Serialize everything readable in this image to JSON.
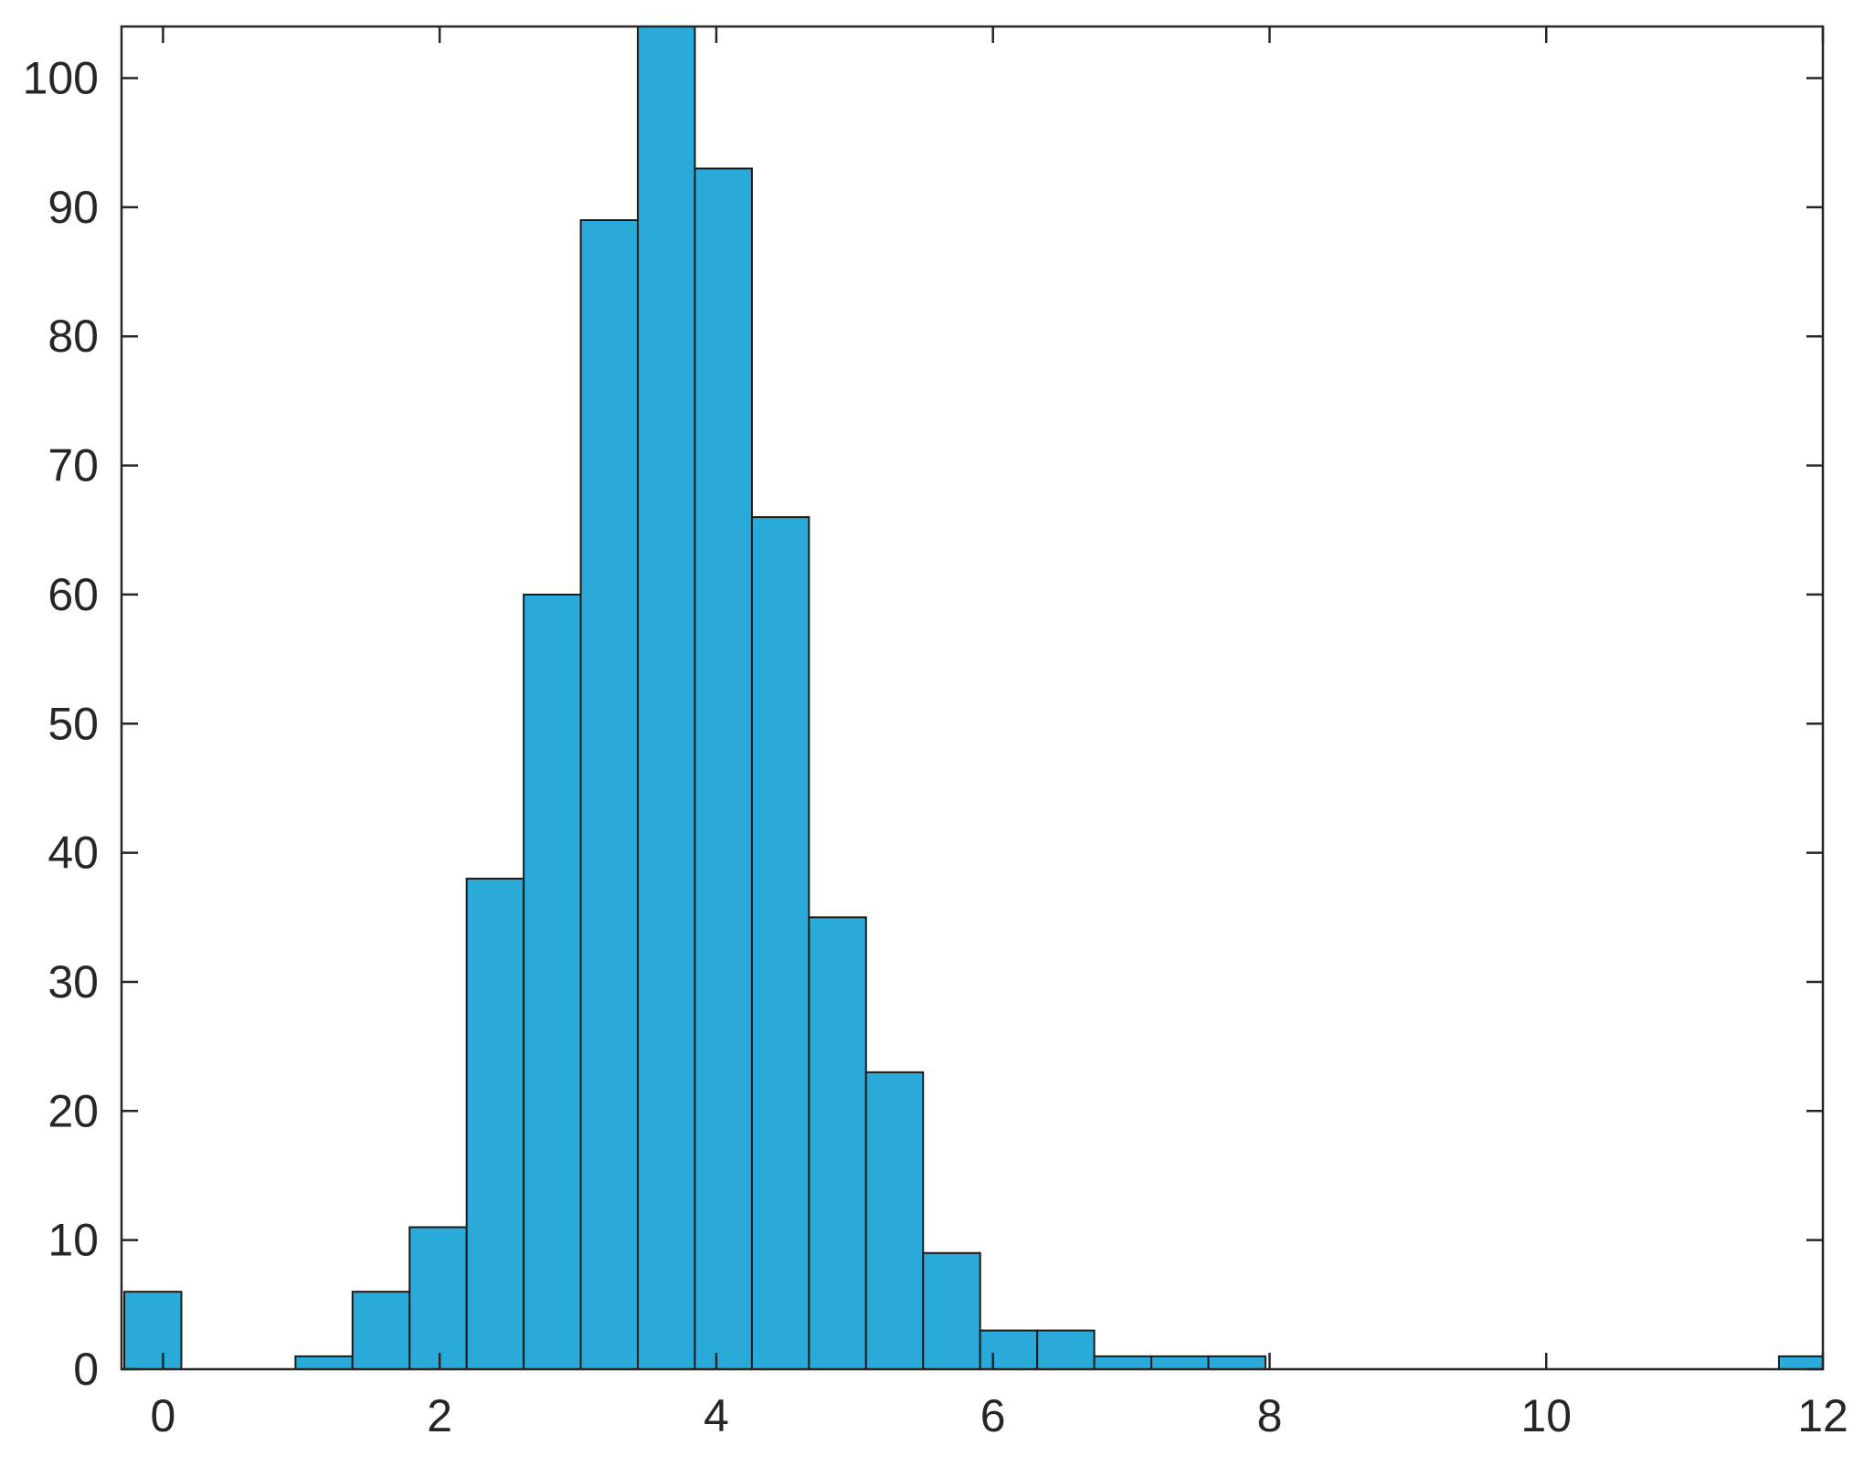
{
  "chart_data": {
    "type": "bar",
    "subtype": "histogram",
    "title": "",
    "xlabel": "",
    "ylabel": "",
    "xlim": [
      -0.3,
      12
    ],
    "ylim": [
      0,
      104
    ],
    "x_ticks": [
      0,
      2,
      4,
      6,
      8,
      10,
      12
    ],
    "y_ticks": [
      0,
      10,
      20,
      30,
      40,
      50,
      60,
      70,
      80,
      90,
      100
    ],
    "bin_edges_start": -0.28,
    "bin_width": 0.4125,
    "bins": [
      {
        "start": -0.28,
        "end": 0.1325,
        "count": 6
      },
      {
        "start": 0.1325,
        "end": 0.545,
        "count": 0
      },
      {
        "start": 0.545,
        "end": 0.9575,
        "count": 0
      },
      {
        "start": 0.9575,
        "end": 1.37,
        "count": 1
      },
      {
        "start": 1.37,
        "end": 1.7825,
        "count": 6
      },
      {
        "start": 1.7825,
        "end": 2.195,
        "count": 11
      },
      {
        "start": 2.195,
        "end": 2.6075,
        "count": 38
      },
      {
        "start": 2.6075,
        "end": 3.02,
        "count": 60
      },
      {
        "start": 3.02,
        "end": 3.4325,
        "count": 89
      },
      {
        "start": 3.4325,
        "end": 3.845,
        "count": 104
      },
      {
        "start": 3.845,
        "end": 4.2575,
        "count": 93
      },
      {
        "start": 4.2575,
        "end": 4.67,
        "count": 66
      },
      {
        "start": 4.67,
        "end": 5.0825,
        "count": 35
      },
      {
        "start": 5.0825,
        "end": 5.495,
        "count": 23
      },
      {
        "start": 5.495,
        "end": 5.9075,
        "count": 9
      },
      {
        "start": 5.9075,
        "end": 6.32,
        "count": 3
      },
      {
        "start": 6.32,
        "end": 6.7325,
        "count": 3
      },
      {
        "start": 6.7325,
        "end": 7.145,
        "count": 1
      },
      {
        "start": 7.145,
        "end": 7.5575,
        "count": 1
      },
      {
        "start": 7.5575,
        "end": 7.97,
        "count": 1
      },
      {
        "start": 7.97,
        "end": 8.3825,
        "count": 0
      },
      {
        "start": 8.3825,
        "end": 8.795,
        "count": 0
      },
      {
        "start": 8.795,
        "end": 9.2075,
        "count": 0
      },
      {
        "start": 9.2075,
        "end": 9.62,
        "count": 0
      },
      {
        "start": 9.62,
        "end": 10.0325,
        "count": 0
      },
      {
        "start": 10.0325,
        "end": 10.445,
        "count": 0
      },
      {
        "start": 10.445,
        "end": 10.8575,
        "count": 0
      },
      {
        "start": 10.8575,
        "end": 11.27,
        "count": 0
      },
      {
        "start": 11.27,
        "end": 11.6825,
        "count": 0
      },
      {
        "start": 11.6825,
        "end": 12.095,
        "count": 1
      }
    ],
    "grid": false,
    "legend": "none",
    "colors": {
      "bar_fill": "#2aaad9",
      "bar_edge": "#1a1a1a",
      "axis": "#262626",
      "background": "#ffffff"
    }
  }
}
